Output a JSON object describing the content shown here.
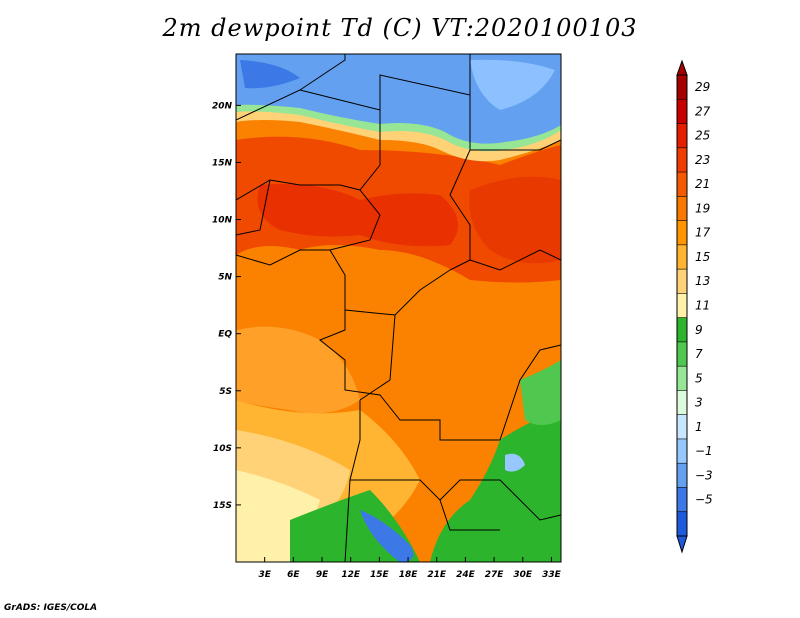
{
  "title": "2m dewpoint Td (C) VT:2020100103",
  "credit": "GrADS: IGES/COLA",
  "map": {
    "lat_labels": [
      "20N",
      "15N",
      "10N",
      "5N",
      "EQ",
      "5S",
      "10S",
      "15S"
    ],
    "lon_labels": [
      "3E",
      "6E",
      "9E",
      "12E",
      "15E",
      "18E",
      "21E",
      "24E",
      "27E",
      "30E",
      "33E"
    ],
    "lat_range": [
      -20,
      24.5
    ],
    "lon_range": [
      0,
      34
    ]
  },
  "colorbar": {
    "labels": [
      "29",
      "27",
      "25",
      "23",
      "21",
      "19",
      "17",
      "15",
      "13",
      "11",
      "9",
      "7",
      "5",
      "3",
      "1",
      "−1",
      "−3",
      "−5"
    ],
    "colors": [
      "#a50000",
      "#c80000",
      "#e61e00",
      "#f03c00",
      "#f55a00",
      "#fa7800",
      "#ff9600",
      "#ffb432",
      "#ffd278",
      "#fff0aa",
      "#2db42d",
      "#50c850",
      "#96e696",
      "#dcfadc",
      "#c8e6ff",
      "#96c8ff",
      "#64a0f0",
      "#3c78e6",
      "#1e5adc"
    ]
  },
  "colors": {
    "red": "#ee3000",
    "red_orange": "#f55a00",
    "orange": "#fa7800",
    "light_orange": "#ffa028",
    "yellow": "#fff0aa",
    "green": "#2db42d",
    "light_green": "#96e696",
    "blue": "#64a0f0",
    "dark_blue": "#1e5adc"
  }
}
